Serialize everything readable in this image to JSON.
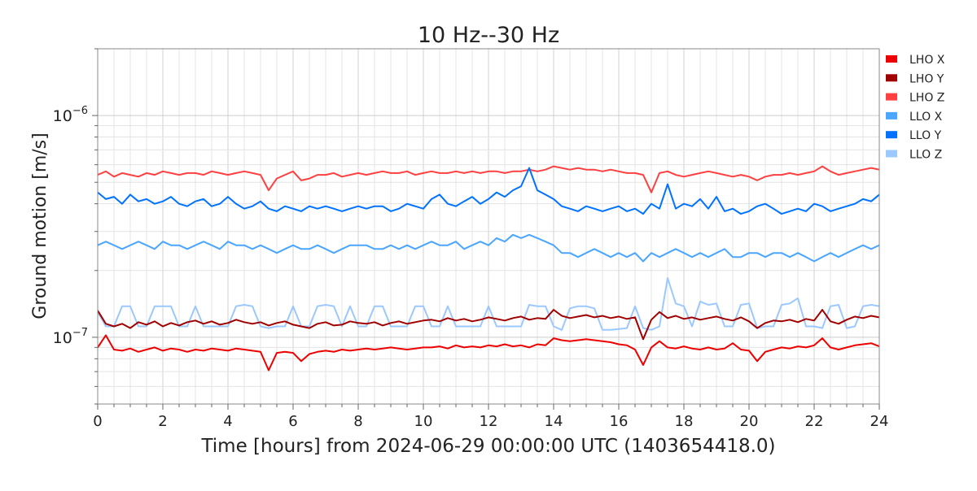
{
  "chart_data": {
    "type": "line",
    "title": "10 Hz--30 Hz",
    "xlabel": "Time [hours] from 2024-06-29 00:00:00 UTC (1403654418.0)",
    "ylabel": "Ground motion [m/s]",
    "xlim": [
      0,
      24
    ],
    "ylim": [
      5e-08,
      2e-06
    ],
    "yscale": "log",
    "grid": true,
    "legend_position": "outside-top-right",
    "x_ticks": [
      0,
      2,
      4,
      6,
      8,
      10,
      12,
      14,
      16,
      18,
      20,
      22,
      24
    ],
    "x_tick_labels": [
      "0",
      "2",
      "4",
      "6",
      "8",
      "10",
      "12",
      "14",
      "16",
      "18",
      "20",
      "22",
      "24"
    ],
    "y_ticks": [
      {
        "value": 1e-06,
        "base": "10",
        "exp": "−6"
      },
      {
        "value": 1e-07,
        "base": "10",
        "exp": "−7"
      }
    ],
    "x_step_hours": 0.25,
    "series": [
      {
        "name": "LHO Z",
        "color": "#ff4040",
        "values": [
          5.4e-07,
          5.6e-07,
          5.3e-07,
          5.5e-07,
          5.4e-07,
          5.3e-07,
          5.5e-07,
          5.4e-07,
          5.6e-07,
          5.5e-07,
          5.4e-07,
          5.5e-07,
          5.5e-07,
          5.4e-07,
          5.6e-07,
          5.5e-07,
          5.4e-07,
          5.5e-07,
          5.6e-07,
          5.5e-07,
          5.4e-07,
          4.6e-07,
          5.2e-07,
          5.4e-07,
          5.6e-07,
          5.1e-07,
          5.2e-07,
          5.4e-07,
          5.4e-07,
          5.5e-07,
          5.3e-07,
          5.4e-07,
          5.5e-07,
          5.4e-07,
          5.5e-07,
          5.6e-07,
          5.5e-07,
          5.5e-07,
          5.6e-07,
          5.4e-07,
          5.5e-07,
          5.6e-07,
          5.5e-07,
          5.5e-07,
          5.6e-07,
          5.5e-07,
          5.6e-07,
          5.5e-07,
          5.6e-07,
          5.6e-07,
          5.5e-07,
          5.6e-07,
          5.6e-07,
          5.7e-07,
          5.6e-07,
          5.7e-07,
          5.9e-07,
          5.8e-07,
          5.7e-07,
          5.8e-07,
          5.7e-07,
          5.7e-07,
          5.6e-07,
          5.7e-07,
          5.6e-07,
          5.5e-07,
          5.5e-07,
          5.4e-07,
          4.5e-07,
          5.5e-07,
          5.6e-07,
          5.4e-07,
          5.3e-07,
          5.4e-07,
          5.5e-07,
          5.6e-07,
          5.5e-07,
          5.4e-07,
          5.3e-07,
          5.4e-07,
          5.3e-07,
          5.1e-07,
          5.3e-07,
          5.4e-07,
          5.4e-07,
          5.5e-07,
          5.4e-07,
          5.5e-07,
          5.6e-07,
          5.9e-07,
          5.6e-07,
          5.4e-07,
          5.5e-07,
          5.6e-07,
          5.7e-07,
          5.8e-07,
          5.7e-07
        ]
      },
      {
        "name": "LLO Y",
        "color": "#0072ff",
        "values": [
          4.5e-07,
          4.2e-07,
          4.3e-07,
          4e-07,
          4.4e-07,
          4.1e-07,
          4.2e-07,
          4e-07,
          4.1e-07,
          4.3e-07,
          4e-07,
          3.9e-07,
          4.1e-07,
          4.2e-07,
          3.9e-07,
          4e-07,
          4.3e-07,
          4e-07,
          3.8e-07,
          3.9e-07,
          4.1e-07,
          3.8e-07,
          3.7e-07,
          3.9e-07,
          3.8e-07,
          3.7e-07,
          3.9e-07,
          3.8e-07,
          3.9e-07,
          3.8e-07,
          3.7e-07,
          3.8e-07,
          3.9e-07,
          3.8e-07,
          3.9e-07,
          3.9e-07,
          3.7e-07,
          3.8e-07,
          4e-07,
          3.9e-07,
          3.8e-07,
          4.2e-07,
          4.4e-07,
          4e-07,
          3.9e-07,
          4.1e-07,
          4.3e-07,
          4e-07,
          4.2e-07,
          4.5e-07,
          4.3e-07,
          4.6e-07,
          4.8e-07,
          5.8e-07,
          4.6e-07,
          4.4e-07,
          4.2e-07,
          3.9e-07,
          3.8e-07,
          3.7e-07,
          3.9e-07,
          3.8e-07,
          3.7e-07,
          3.8e-07,
          3.9e-07,
          3.7e-07,
          3.8e-07,
          3.6e-07,
          4e-07,
          3.8e-07,
          4.9e-07,
          3.8e-07,
          4e-07,
          3.9e-07,
          4.2e-07,
          3.8e-07,
          4.3e-07,
          3.7e-07,
          3.8e-07,
          3.6e-07,
          3.7e-07,
          3.9e-07,
          4e-07,
          3.8e-07,
          3.6e-07,
          3.7e-07,
          3.8e-07,
          3.7e-07,
          4e-07,
          3.9e-07,
          3.7e-07,
          3.8e-07,
          3.9e-07,
          4e-07,
          4.2e-07,
          4.1e-07,
          4.4e-07
        ]
      },
      {
        "name": "LLO X",
        "color": "#4ba6ff",
        "values": [
          2.6e-07,
          2.7e-07,
          2.6e-07,
          2.5e-07,
          2.6e-07,
          2.7e-07,
          2.6e-07,
          2.5e-07,
          2.7e-07,
          2.6e-07,
          2.6e-07,
          2.5e-07,
          2.6e-07,
          2.7e-07,
          2.6e-07,
          2.5e-07,
          2.7e-07,
          2.6e-07,
          2.6e-07,
          2.5e-07,
          2.6e-07,
          2.5e-07,
          2.4e-07,
          2.5e-07,
          2.6e-07,
          2.5e-07,
          2.5e-07,
          2.6e-07,
          2.5e-07,
          2.4e-07,
          2.5e-07,
          2.6e-07,
          2.6e-07,
          2.6e-07,
          2.5e-07,
          2.5e-07,
          2.6e-07,
          2.5e-07,
          2.6e-07,
          2.5e-07,
          2.6e-07,
          2.7e-07,
          2.6e-07,
          2.6e-07,
          2.7e-07,
          2.5e-07,
          2.6e-07,
          2.7e-07,
          2.6e-07,
          2.8e-07,
          2.7e-07,
          2.9e-07,
          2.8e-07,
          2.9e-07,
          2.8e-07,
          2.7e-07,
          2.6e-07,
          2.4e-07,
          2.4e-07,
          2.3e-07,
          2.4e-07,
          2.5e-07,
          2.4e-07,
          2.3e-07,
          2.4e-07,
          2.3e-07,
          2.4e-07,
          2.2e-07,
          2.4e-07,
          2.3e-07,
          2.4e-07,
          2.5e-07,
          2.4e-07,
          2.3e-07,
          2.4e-07,
          2.3e-07,
          2.4e-07,
          2.5e-07,
          2.3e-07,
          2.3e-07,
          2.4e-07,
          2.4e-07,
          2.3e-07,
          2.4e-07,
          2.4e-07,
          2.3e-07,
          2.4e-07,
          2.3e-07,
          2.2e-07,
          2.3e-07,
          2.4e-07,
          2.3e-07,
          2.4e-07,
          2.5e-07,
          2.6e-07,
          2.5e-07,
          2.6e-07
        ]
      },
      {
        "name": "LLO Z",
        "color": "#9ac8ff",
        "values": [
          1.3e-07,
          1.12e-07,
          1.12e-07,
          1.38e-07,
          1.38e-07,
          1.12e-07,
          1.12e-07,
          1.38e-07,
          1.38e-07,
          1.38e-07,
          1.12e-07,
          1.12e-07,
          1.38e-07,
          1.12e-07,
          1.12e-07,
          1.12e-07,
          1.12e-07,
          1.38e-07,
          1.4e-07,
          1.38e-07,
          1.12e-07,
          1.1e-07,
          1.12e-07,
          1.12e-07,
          1.38e-07,
          1.12e-07,
          1.12e-07,
          1.38e-07,
          1.4e-07,
          1.38e-07,
          1.12e-07,
          1.38e-07,
          1.12e-07,
          1.12e-07,
          1.38e-07,
          1.38e-07,
          1.12e-07,
          1.12e-07,
          1.12e-07,
          1.38e-07,
          1.38e-07,
          1.12e-07,
          1.12e-07,
          1.38e-07,
          1.12e-07,
          1.12e-07,
          1.12e-07,
          1.12e-07,
          1.38e-07,
          1.12e-07,
          1.12e-07,
          1.12e-07,
          1.12e-07,
          1.4e-07,
          1.38e-07,
          1.38e-07,
          1.12e-07,
          1.08e-07,
          1.35e-07,
          1.38e-07,
          1.38e-07,
          1.35e-07,
          1.08e-07,
          1.08e-07,
          1.09e-07,
          1.1e-07,
          1.38e-07,
          1.1e-07,
          1.08e-07,
          1.12e-07,
          1.85e-07,
          1.42e-07,
          1.38e-07,
          1.12e-07,
          1.45e-07,
          1.4e-07,
          1.42e-07,
          1.12e-07,
          1.12e-07,
          1.4e-07,
          1.42e-07,
          1.1e-07,
          1.12e-07,
          1.12e-07,
          1.4e-07,
          1.42e-07,
          1.5e-07,
          1.12e-07,
          1.12e-07,
          1.1e-07,
          1.38e-07,
          1.4e-07,
          1.1e-07,
          1.12e-07,
          1.38e-07,
          1.4e-07,
          1.38e-07
        ]
      },
      {
        "name": "LHO Y",
        "color": "#a00000",
        "values": [
          1.32e-07,
          1.15e-07,
          1.12e-07,
          1.15e-07,
          1.1e-07,
          1.17e-07,
          1.14e-07,
          1.18e-07,
          1.12e-07,
          1.16e-07,
          1.13e-07,
          1.17e-07,
          1.19e-07,
          1.15e-07,
          1.18e-07,
          1.14e-07,
          1.16e-07,
          1.2e-07,
          1.17e-07,
          1.15e-07,
          1.17e-07,
          1.13e-07,
          1.16e-07,
          1.18e-07,
          1.14e-07,
          1.12e-07,
          1.1e-07,
          1.15e-07,
          1.17e-07,
          1.13e-07,
          1.14e-07,
          1.18e-07,
          1.16e-07,
          1.15e-07,
          1.17e-07,
          1.13e-07,
          1.16e-07,
          1.18e-07,
          1.15e-07,
          1.17e-07,
          1.19e-07,
          1.2e-07,
          1.18e-07,
          1.22e-07,
          1.19e-07,
          1.21e-07,
          1.18e-07,
          1.2e-07,
          1.23e-07,
          1.21e-07,
          1.19e-07,
          1.22e-07,
          1.24e-07,
          1.2e-07,
          1.22e-07,
          1.21e-07,
          1.33e-07,
          1.25e-07,
          1.22e-07,
          1.24e-07,
          1.26e-07,
          1.23e-07,
          1.25e-07,
          1.22e-07,
          1.24e-07,
          1.21e-07,
          1.23e-07,
          9.8e-08,
          1.2e-07,
          1.3e-07,
          1.22e-07,
          1.25e-07,
          1.21e-07,
          1.23e-07,
          1.2e-07,
          1.22e-07,
          1.24e-07,
          1.21e-07,
          1.19e-07,
          1.23e-07,
          1.18e-07,
          1.1e-07,
          1.16e-07,
          1.19e-07,
          1.18e-07,
          1.2e-07,
          1.17e-07,
          1.21e-07,
          1.19e-07,
          1.33e-07,
          1.18e-07,
          1.15e-07,
          1.2e-07,
          1.24e-07,
          1.22e-07,
          1.25e-07,
          1.23e-07
        ]
      },
      {
        "name": "LHO X",
        "color": "#ee0000",
        "values": [
          9e-08,
          1.02e-07,
          8.8e-08,
          8.7e-08,
          8.9e-08,
          8.6e-08,
          8.8e-08,
          9e-08,
          8.7e-08,
          8.9e-08,
          8.8e-08,
          8.6e-08,
          8.8e-08,
          8.7e-08,
          8.9e-08,
          8.8e-08,
          8.7e-08,
          8.9e-08,
          8.8e-08,
          8.7e-08,
          8.6e-08,
          7.1e-08,
          8.5e-08,
          8.6e-08,
          8.5e-08,
          7.8e-08,
          8.4e-08,
          8.6e-08,
          8.7e-08,
          8.6e-08,
          8.8e-08,
          8.7e-08,
          8.8e-08,
          8.9e-08,
          8.8e-08,
          8.9e-08,
          9e-08,
          8.9e-08,
          8.8e-08,
          8.9e-08,
          9e-08,
          9e-08,
          9.1e-08,
          8.9e-08,
          9.2e-08,
          9e-08,
          9.1e-08,
          9e-08,
          9.2e-08,
          9.1e-08,
          9.3e-08,
          9.1e-08,
          9.2e-08,
          9e-08,
          9.3e-08,
          9.2e-08,
          9.9e-08,
          9.7e-08,
          9.6e-08,
          9.7e-08,
          9.8e-08,
          9.7e-08,
          9.6e-08,
          9.5e-08,
          9.3e-08,
          9.2e-08,
          8.8e-08,
          7.5e-08,
          9e-08,
          9.6e-08,
          9e-08,
          8.9e-08,
          9.1e-08,
          8.9e-08,
          8.8e-08,
          9e-08,
          8.8e-08,
          8.9e-08,
          9.4e-08,
          8.8e-08,
          8.7e-08,
          7.8e-08,
          8.6e-08,
          8.8e-08,
          9e-08,
          8.9e-08,
          9.1e-08,
          9e-08,
          9.2e-08,
          9.9e-08,
          9e-08,
          8.8e-08,
          9e-08,
          9.2e-08,
          9.3e-08,
          9.4e-08,
          9.1e-08
        ]
      }
    ],
    "legend_order": [
      "LHO X",
      "LHO Y",
      "LHO Z",
      "LLO X",
      "LLO Y",
      "LLO Z"
    ]
  }
}
